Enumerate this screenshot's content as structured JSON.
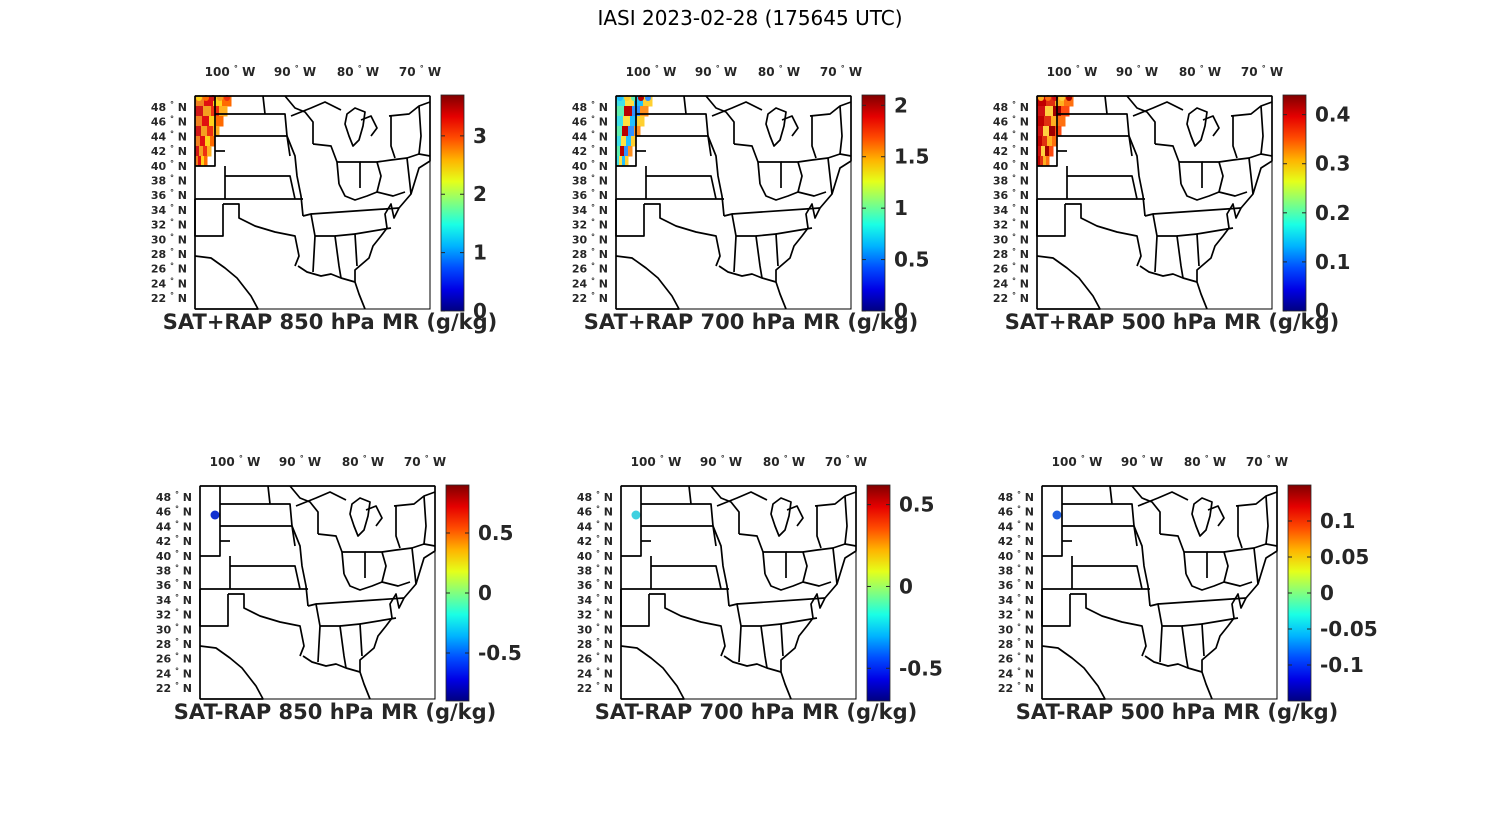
{
  "figure": {
    "title": "IASI 2023-02-28 (175645 UTC)"
  },
  "axes_labels": {
    "lon": [
      "100",
      "90",
      "80",
      "70"
    ],
    "lon_hemisphere": "W",
    "lat": [
      "48",
      "46",
      "44",
      "42",
      "40",
      "38",
      "36",
      "34",
      "32",
      "30",
      "28",
      "26",
      "24",
      "22"
    ],
    "lat_hemisphere": "N",
    "degree_symbol": "°"
  },
  "colormap": "jet",
  "map_style": {
    "state_lines": "#000000",
    "background": "#ffffff"
  },
  "panels": [
    {
      "title": "SAT+RAP 850 hPa MR (g/kg)",
      "colorbar": {
        "min": 0,
        "max": 3.7,
        "ticks": [
          0,
          1,
          2,
          3
        ],
        "tick_labels": [
          "0",
          "1",
          "2",
          "3"
        ]
      },
      "data_extent": "strip",
      "strip_colors": [
        "#f08020",
        "#e01010",
        "#ffd21a",
        "#ff6a00",
        "#d01818",
        "#f4a020",
        "#ee3010",
        "#ffb020"
      ]
    },
    {
      "title": "SAT+RAP 700 hPa MR (g/kg)",
      "colorbar": {
        "min": 0,
        "max": 2.1,
        "ticks": [
          0,
          0.5,
          1,
          1.5,
          2
        ],
        "tick_labels": [
          "0",
          "0.5",
          "1",
          "1.5",
          "2"
        ]
      },
      "data_extent": "strip",
      "strip_colors": [
        "#40e0e8",
        "#ffe040",
        "#20c0ff",
        "#ffd030",
        "#60f0b0",
        "#b80000",
        "#3090ff",
        "#ff9020"
      ]
    },
    {
      "title": "SAT+RAP 500 hPa MR (g/kg)",
      "colorbar": {
        "min": 0,
        "max": 0.44,
        "ticks": [
          0,
          0.1,
          0.2,
          0.3,
          0.4
        ],
        "tick_labels": [
          "0",
          "0.1",
          "0.2",
          "0.3",
          "0.4"
        ]
      },
      "data_extent": "strip",
      "strip_colors": [
        "#c00000",
        "#e03010",
        "#ffb020",
        "#ff7010",
        "#d01010",
        "#ffd040",
        "#a00000",
        "#ff4a10"
      ]
    },
    {
      "title": "SAT-RAP 850 hPa MR (g/kg)",
      "colorbar": {
        "min": -0.9,
        "max": 0.9,
        "ticks": [
          -0.5,
          0,
          0.5
        ],
        "tick_labels": [
          "-0.5",
          "0",
          "0.5"
        ]
      },
      "data_extent": "spot",
      "spot_color": "#1030d0"
    },
    {
      "title": "SAT-RAP 700 hPa MR (g/kg)",
      "colorbar": {
        "min": -0.7,
        "max": 0.62,
        "ticks": [
          -0.5,
          0,
          0.5
        ],
        "tick_labels": [
          "-0.5",
          "0",
          "0.5"
        ]
      },
      "data_extent": "spot",
      "spot_color": "#40d0e0"
    },
    {
      "title": "SAT-RAP 500 hPa MR (g/kg)",
      "colorbar": {
        "min": -0.15,
        "max": 0.15,
        "ticks": [
          -0.1,
          -0.05,
          0,
          0.05,
          0.1
        ],
        "tick_labels": [
          "-0.1",
          "-0.05",
          "0",
          "0.05",
          "0.1"
        ]
      },
      "data_extent": "spot",
      "spot_color": "#2060e0"
    }
  ]
}
